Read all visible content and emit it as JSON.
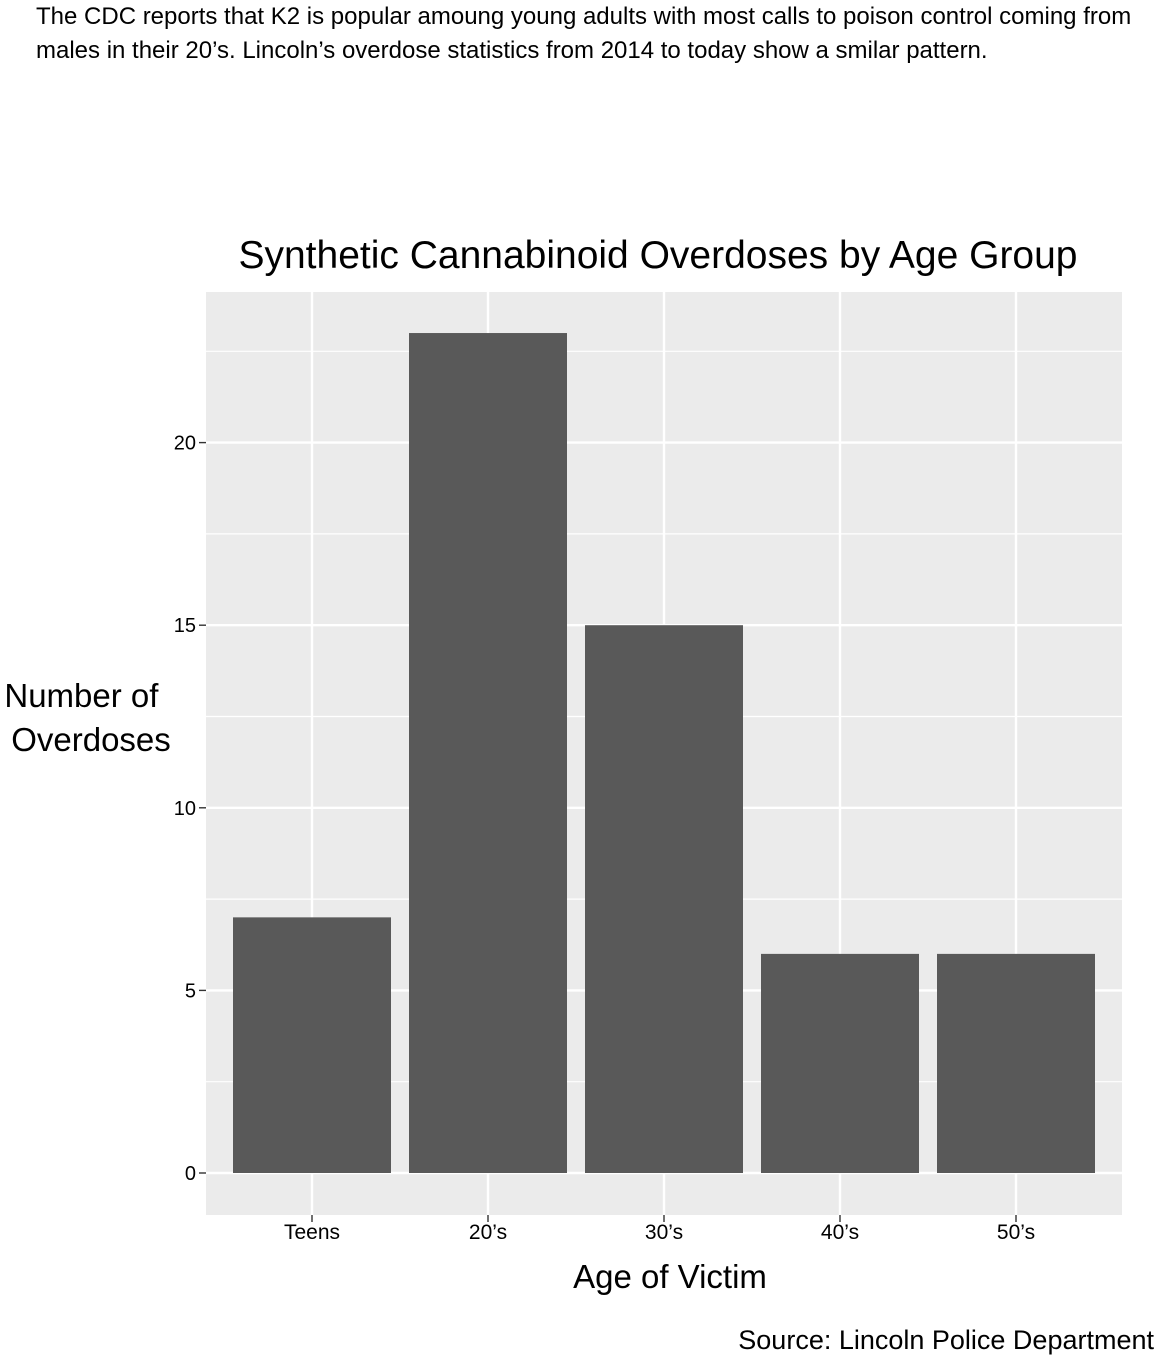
{
  "intro_text": "The CDC reports that K2 is popular amoung young adults with most calls to poison control coming from males in their 20’s. Lincoln’s overdose statistics from 2014 to today show a smilar pattern.",
  "source": "Source: Lincoln Police Department",
  "chart_data": {
    "type": "bar",
    "title": "Synthetic Cannabinoid Overdoses by Age Group",
    "xlabel": "Age of Victim",
    "ylabel_lines": [
      "Number of",
      "Overdoses"
    ],
    "categories": [
      "Teens",
      "20’s",
      "30’s",
      "40’s",
      "50’s"
    ],
    "values": [
      7,
      23,
      15,
      6,
      6
    ],
    "ylim": [
      0,
      24
    ],
    "yticks": [
      0,
      5,
      10,
      15,
      20
    ],
    "grid": true,
    "colors": {
      "bar": "#595959",
      "panel": "#ebebeb",
      "grid": "#ffffff"
    }
  }
}
